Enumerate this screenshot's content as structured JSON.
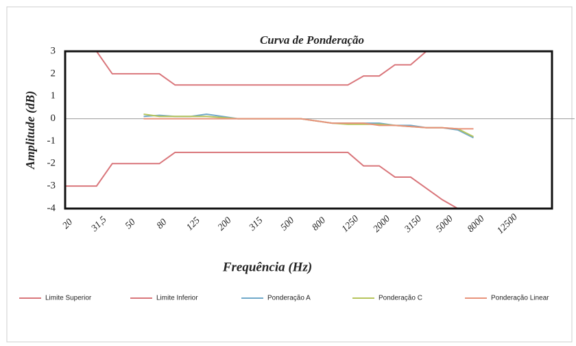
{
  "chart_data": {
    "type": "line",
    "title": "Curva de Ponderação",
    "x_label": "Frequência (Hz)",
    "y_label": "Amplitude  (dB)",
    "categories": [
      "20",
      null,
      "31,5",
      null,
      "50",
      null,
      "80",
      null,
      "125",
      null,
      "200",
      null,
      "315",
      null,
      "500",
      null,
      "800",
      null,
      "1250",
      null,
      "2000",
      null,
      "3150",
      null,
      "5000",
      null,
      "8000",
      null,
      "12500",
      null,
      null
    ],
    "ylim": [
      -4,
      3
    ],
    "yticks": [
      -4,
      -3,
      -2,
      -1,
      0,
      1,
      2,
      3
    ],
    "series": [
      {
        "name": "Limite Superior",
        "color": "#d9757a",
        "values": [
          3,
          3,
          3,
          2,
          2,
          2,
          2,
          1.5,
          1.5,
          1.5,
          1.5,
          1.5,
          1.5,
          1.5,
          1.5,
          1.5,
          1.5,
          1.5,
          1.5,
          1.9,
          1.9,
          2.4,
          2.4,
          3,
          null,
          null,
          null,
          null,
          null,
          null,
          null
        ]
      },
      {
        "name": "Limite Inferior",
        "color": "#d9757a",
        "values": [
          -3,
          -3,
          -3,
          -2,
          -2,
          -2,
          -2,
          -1.5,
          -1.5,
          -1.5,
          -1.5,
          -1.5,
          -1.5,
          -1.5,
          -1.5,
          -1.5,
          -1.5,
          -1.5,
          -1.5,
          -2.1,
          -2.1,
          -2.6,
          -2.6,
          -3.1,
          -3.6,
          -4,
          null,
          null,
          null,
          null,
          null
        ]
      },
      {
        "name": "Ponderação A",
        "color": "#6fa8c9",
        "values": [
          null,
          null,
          null,
          null,
          null,
          0.1,
          0.15,
          0.1,
          0.1,
          0.2,
          0.1,
          0,
          0,
          0,
          0,
          0,
          -0.1,
          -0.2,
          -0.2,
          -0.2,
          -0.2,
          -0.3,
          -0.3,
          -0.4,
          -0.4,
          -0.5,
          -0.85,
          null,
          null,
          null,
          null
        ]
      },
      {
        "name": "Ponderação C",
        "color": "#b5c45a",
        "values": [
          null,
          null,
          null,
          null,
          null,
          0.2,
          0.1,
          0.1,
          0.1,
          0.1,
          0.05,
          0,
          0,
          0,
          0,
          0,
          -0.1,
          -0.2,
          -0.25,
          -0.25,
          -0.25,
          -0.3,
          -0.35,
          -0.4,
          -0.4,
          -0.45,
          -0.8,
          null,
          null,
          null,
          null
        ]
      },
      {
        "name": "Ponderação Linear",
        "color": "#e8927a",
        "values": [
          null,
          null,
          null,
          null,
          null,
          0,
          0,
          0,
          0,
          0,
          0,
          0,
          0,
          0,
          0,
          0,
          -0.1,
          -0.2,
          -0.2,
          -0.2,
          -0.3,
          -0.3,
          -0.35,
          -0.4,
          -0.4,
          -0.45,
          -0.45,
          null,
          null,
          null,
          null
        ]
      }
    ]
  }
}
